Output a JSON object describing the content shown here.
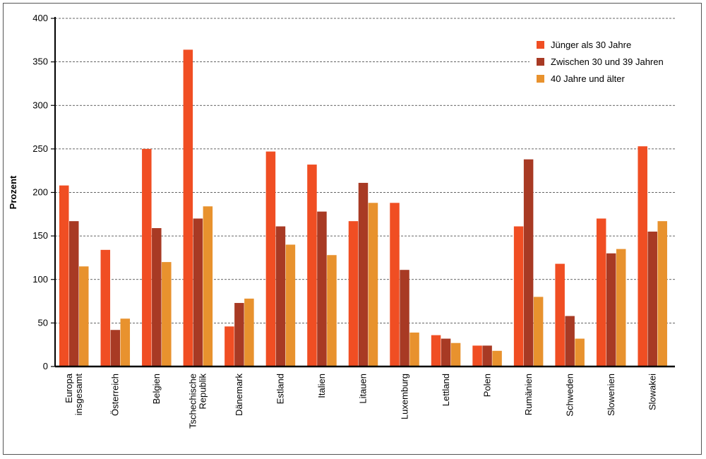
{
  "chart_data": {
    "type": "bar",
    "title": "",
    "xlabel": "",
    "ylabel": "Prozent",
    "ylim": [
      0,
      400
    ],
    "yticks": [
      0,
      50,
      100,
      150,
      200,
      250,
      300,
      350,
      400
    ],
    "grid": "horizontal dashed",
    "legend_position": "top-right",
    "categories": [
      [
        "Europa",
        "insgesamt"
      ],
      [
        "Österreich"
      ],
      [
        "Belgien"
      ],
      [
        "Tschechische",
        "Republik"
      ],
      [
        "Dänemark"
      ],
      [
        "Estland"
      ],
      [
        "Italien"
      ],
      [
        "Litauen"
      ],
      [
        "Luxemburg"
      ],
      [
        "Lettland"
      ],
      [
        "Polen"
      ],
      [
        "Rumänien"
      ],
      [
        "Schweden"
      ],
      [
        "Slowenien"
      ],
      [
        "Slowakei"
      ]
    ],
    "series": [
      {
        "name": "Jünger als 30 Jahre",
        "color": "#f04e23",
        "values": [
          208,
          134,
          250,
          364,
          46,
          247,
          232,
          167,
          188,
          36,
          24,
          161,
          118,
          170,
          253
        ]
      },
      {
        "name": "Zwischen 30 und 39 Jahren",
        "color": "#a83a24",
        "values": [
          167,
          42,
          159,
          170,
          73,
          161,
          178,
          211,
          111,
          32,
          24,
          238,
          58,
          130,
          155
        ]
      },
      {
        "name": "40 Jahre und älter",
        "color": "#e8922e",
        "values": [
          115,
          55,
          120,
          184,
          78,
          140,
          128,
          188,
          39,
          27,
          18,
          80,
          32,
          135,
          167
        ]
      }
    ]
  }
}
